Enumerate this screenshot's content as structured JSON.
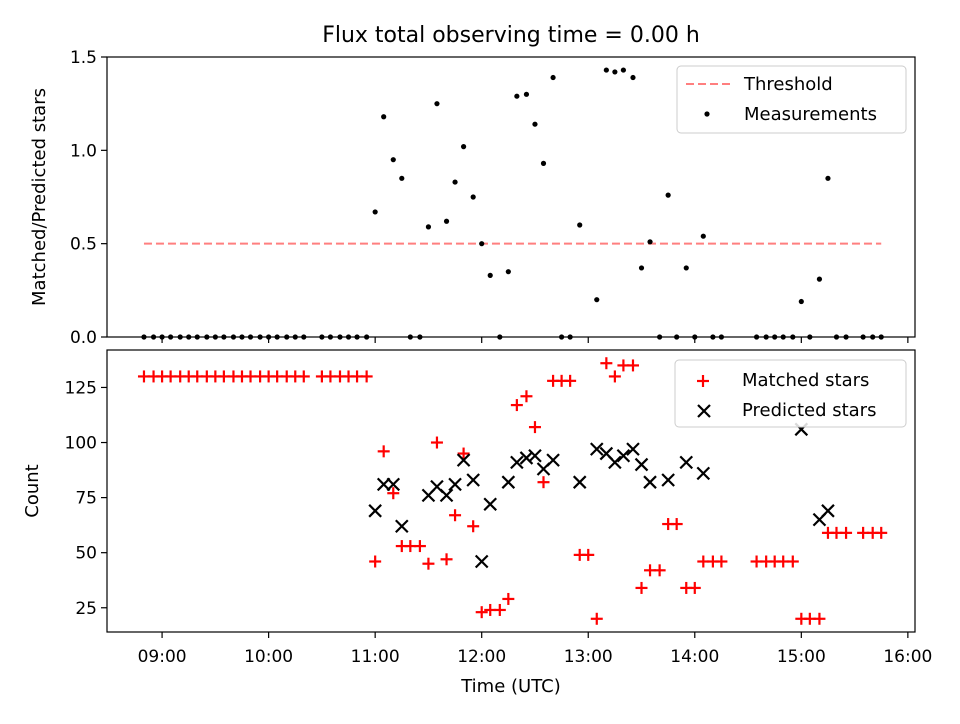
{
  "chart_data": [
    {
      "type": "scatter",
      "title": "Flux total observing time = 0.00 h",
      "xlabel": "",
      "ylabel": "Matched/Predicted stars",
      "xlim": [
        8.483,
        16.067
      ],
      "ylim": [
        0,
        1.5
      ],
      "yticks": [
        0,
        0.5,
        1.0,
        1.5
      ],
      "ytick_labels": [
        "0.0",
        "0.5",
        "1.0",
        "1.5"
      ],
      "legend_position": "top-right",
      "threshold": {
        "name": "Threshold",
        "value": 0.5,
        "x_range": [
          8.83,
          15.75
        ],
        "color": "#ff7f7f"
      },
      "series": [
        {
          "name": "Measurements",
          "color": "#000000",
          "x": [
            8.83,
            8.92,
            9.0,
            9.08,
            9.17,
            9.25,
            9.33,
            9.42,
            9.5,
            9.58,
            9.67,
            9.75,
            9.83,
            9.92,
            10.0,
            10.08,
            10.17,
            10.25,
            10.33,
            10.5,
            10.58,
            10.67,
            10.75,
            10.83,
            10.92,
            11.0,
            11.08,
            11.17,
            11.25,
            11.33,
            11.42,
            11.5,
            11.58,
            11.67,
            11.75,
            11.83,
            11.92,
            12.0,
            12.08,
            12.17,
            12.25,
            12.33,
            12.42,
            12.5,
            12.58,
            12.67,
            12.75,
            12.83,
            12.92,
            13.08,
            13.17,
            13.25,
            13.33,
            13.42,
            13.5,
            13.58,
            13.67,
            13.75,
            13.83,
            13.92,
            14.0,
            14.08,
            14.17,
            14.25,
            14.58,
            14.67,
            14.75,
            14.83,
            14.92,
            15.0,
            15.08,
            15.17,
            15.25,
            15.33,
            15.42,
            15.58,
            15.67,
            15.75
          ],
          "y": [
            0,
            0,
            0,
            0,
            0,
            0,
            0,
            0,
            0,
            0,
            0,
            0,
            0,
            0,
            0,
            0,
            0,
            0,
            0,
            0,
            0,
            0,
            0,
            0,
            0,
            0.67,
            1.18,
            0.95,
            0.85,
            0,
            0,
            0.59,
            1.25,
            0.62,
            0.83,
            1.02,
            0.75,
            0.5,
            0.33,
            0,
            0.35,
            1.29,
            1.3,
            1.14,
            0.93,
            1.39,
            0,
            0,
            0.6,
            0.2,
            1.43,
            1.42,
            1.43,
            1.39,
            0.37,
            0.51,
            0,
            0.76,
            0,
            0.37,
            0,
            0.54,
            0,
            0,
            0,
            0,
            0,
            0,
            0,
            0.19,
            0,
            0.31,
            0.85,
            0,
            0,
            0,
            0,
            0
          ]
        }
      ]
    },
    {
      "type": "scatter",
      "title": "",
      "xlabel": "Time (UTC)",
      "ylabel": "Count",
      "xlim": [
        8.483,
        16.067
      ],
      "ylim": [
        14,
        142
      ],
      "yticks": [
        25,
        50,
        75,
        100,
        125
      ],
      "ytick_labels": [
        "25",
        "50",
        "75",
        "100",
        "125"
      ],
      "xticks": [
        9,
        10,
        11,
        12,
        13,
        14,
        15,
        16
      ],
      "xtick_labels": [
        "09:00",
        "10:00",
        "11:00",
        "12:00",
        "13:00",
        "14:00",
        "15:00",
        "16:00"
      ],
      "legend_position": "top-right",
      "series": [
        {
          "name": "Matched stars",
          "marker": "plus",
          "color": "#ff0000",
          "x": [
            8.83,
            8.92,
            9.0,
            9.08,
            9.17,
            9.25,
            9.33,
            9.42,
            9.5,
            9.58,
            9.67,
            9.75,
            9.83,
            9.92,
            10.0,
            10.08,
            10.17,
            10.25,
            10.33,
            10.5,
            10.58,
            10.67,
            10.75,
            10.83,
            10.92,
            11.0,
            11.08,
            11.17,
            11.25,
            11.33,
            11.42,
            11.5,
            11.58,
            11.67,
            11.75,
            11.83,
            11.92,
            12.0,
            12.08,
            12.17,
            12.25,
            12.33,
            12.42,
            12.5,
            12.58,
            12.67,
            12.75,
            12.83,
            12.92,
            13.0,
            13.08,
            13.17,
            13.25,
            13.33,
            13.42,
            13.5,
            13.58,
            13.67,
            13.75,
            13.83,
            13.92,
            14.0,
            14.08,
            14.17,
            14.25,
            14.58,
            14.67,
            14.75,
            14.83,
            14.92,
            15.0,
            15.08,
            15.17,
            15.25,
            15.33,
            15.42,
            15.58,
            15.67,
            15.75
          ],
          "y": [
            130,
            130,
            130,
            130,
            130,
            130,
            130,
            130,
            130,
            130,
            130,
            130,
            130,
            130,
            130,
            130,
            130,
            130,
            130,
            130,
            130,
            130,
            130,
            130,
            130,
            46,
            96,
            77,
            53,
            53,
            53,
            45,
            100,
            47,
            67,
            95,
            62,
            23,
            24,
            24,
            29,
            117,
            121,
            107,
            82,
            128,
            128,
            128,
            49,
            49,
            20,
            136,
            130,
            135,
            135,
            34,
            42,
            42,
            63,
            63,
            34,
            34,
            46,
            46,
            46,
            46,
            46,
            46,
            46,
            46,
            20,
            20,
            20,
            59,
            59,
            59,
            59,
            59,
            59
          ]
        },
        {
          "name": "Predicted stars",
          "marker": "x",
          "color": "#000000",
          "x": [
            11.0,
            11.08,
            11.17,
            11.25,
            11.5,
            11.58,
            11.67,
            11.75,
            11.83,
            11.92,
            12.0,
            12.08,
            12.25,
            12.33,
            12.42,
            12.5,
            12.58,
            12.67,
            12.92,
            13.08,
            13.17,
            13.25,
            13.33,
            13.42,
            13.5,
            13.58,
            13.75,
            13.92,
            14.08,
            15.0,
            15.17,
            15.25
          ],
          "y": [
            69,
            81,
            81,
            62,
            76,
            80,
            76,
            81,
            92,
            83,
            46,
            72,
            82,
            91,
            93,
            94,
            88,
            92,
            82,
            97,
            95,
            91,
            94,
            97,
            90,
            82,
            83,
            91,
            86,
            106,
            65,
            69
          ]
        }
      ]
    }
  ]
}
